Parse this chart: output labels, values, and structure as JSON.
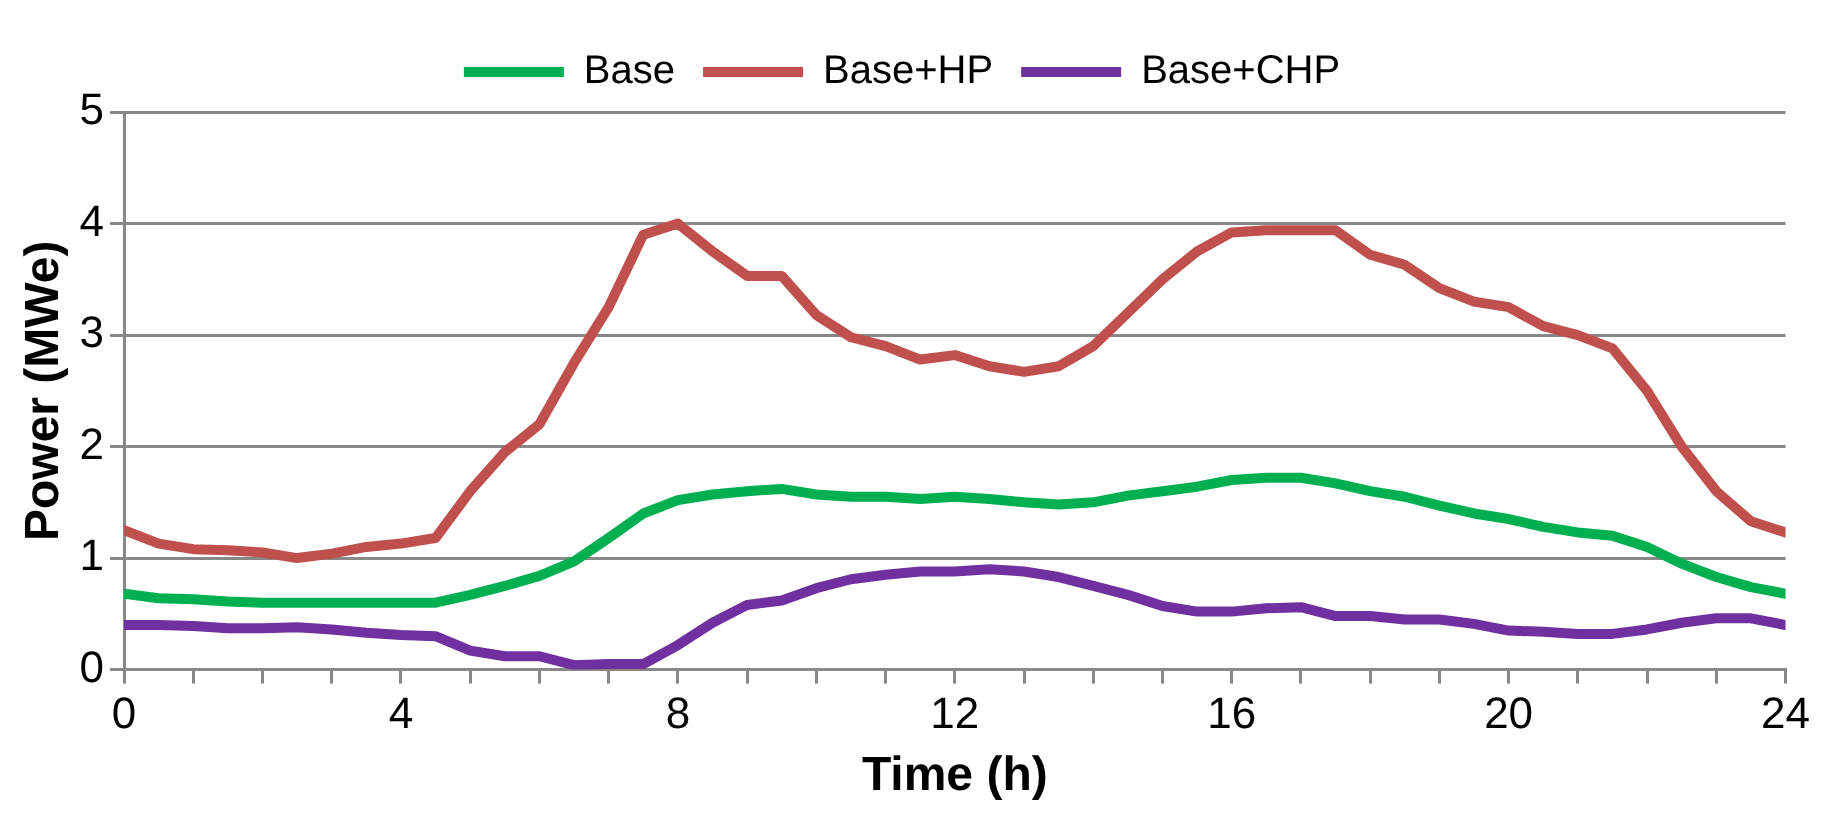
{
  "chart_data": {
    "type": "line",
    "xlabel": "Time (h)",
    "ylabel": "Power (MWe)",
    "x": [
      0,
      0.5,
      1,
      1.5,
      2,
      2.5,
      3,
      3.5,
      4,
      4.5,
      5,
      5.5,
      6,
      6.5,
      7,
      7.5,
      8,
      8.5,
      9,
      9.5,
      10,
      10.5,
      11,
      11.5,
      12,
      12.5,
      13,
      13.5,
      14,
      14.5,
      15,
      15.5,
      16,
      16.5,
      17,
      17.5,
      18,
      18.5,
      19,
      19.5,
      20,
      20.5,
      21,
      21.5,
      22,
      22.5,
      23,
      23.5,
      24
    ],
    "series": [
      {
        "name": "Base",
        "color": "#00b050",
        "values": [
          0.68,
          0.64,
          0.63,
          0.61,
          0.6,
          0.6,
          0.6,
          0.6,
          0.6,
          0.6,
          0.67,
          0.75,
          0.84,
          0.97,
          1.18,
          1.4,
          1.52,
          1.57,
          1.6,
          1.62,
          1.57,
          1.55,
          1.55,
          1.53,
          1.55,
          1.53,
          1.5,
          1.48,
          1.5,
          1.56,
          1.6,
          1.64,
          1.7,
          1.72,
          1.72,
          1.67,
          1.6,
          1.55,
          1.47,
          1.4,
          1.35,
          1.28,
          1.23,
          1.2,
          1.1,
          0.95,
          0.83,
          0.74,
          0.68
        ]
      },
      {
        "name": "Base+HP",
        "color": "#c0504d",
        "values": [
          1.25,
          1.13,
          1.08,
          1.07,
          1.05,
          1.0,
          1.04,
          1.1,
          1.13,
          1.18,
          1.6,
          1.95,
          2.2,
          2.75,
          3.25,
          3.9,
          4.0,
          3.75,
          3.53,
          3.53,
          3.18,
          2.98,
          2.9,
          2.78,
          2.82,
          2.72,
          2.67,
          2.72,
          2.9,
          3.2,
          3.5,
          3.75,
          3.92,
          3.94,
          3.94,
          3.94,
          3.72,
          3.63,
          3.42,
          3.3,
          3.25,
          3.08,
          3.0,
          2.88,
          2.5,
          2.0,
          1.6,
          1.33,
          1.23
        ]
      },
      {
        "name": "Base+CHP",
        "color": "#7030a0",
        "values": [
          0.4,
          0.4,
          0.39,
          0.37,
          0.37,
          0.38,
          0.36,
          0.33,
          0.31,
          0.3,
          0.17,
          0.12,
          0.12,
          0.04,
          0.05,
          0.05,
          0.22,
          0.42,
          0.58,
          0.62,
          0.73,
          0.81,
          0.85,
          0.88,
          0.88,
          0.9,
          0.88,
          0.83,
          0.75,
          0.67,
          0.57,
          0.52,
          0.52,
          0.55,
          0.56,
          0.48,
          0.48,
          0.45,
          0.45,
          0.41,
          0.35,
          0.34,
          0.32,
          0.32,
          0.36,
          0.42,
          0.46,
          0.46,
          0.4
        ]
      }
    ],
    "xlim": [
      0,
      24
    ],
    "xticks": [
      0,
      {
        "value": 1,
        "label": null
      },
      {
        "value": 2,
        "label": null
      },
      {
        "value": 3,
        "label": null
      },
      4,
      {
        "value": 5,
        "label": null
      },
      {
        "value": 6,
        "label": null
      },
      {
        "value": 7,
        "label": null
      },
      8,
      {
        "value": 9,
        "label": null
      },
      {
        "value": 10,
        "label": null
      },
      {
        "value": 11,
        "label": null
      },
      12,
      {
        "value": 13,
        "label": null
      },
      {
        "value": 14,
        "label": null
      },
      {
        "value": 15,
        "label": null
      },
      16,
      {
        "value": 17,
        "label": null
      },
      {
        "value": 18,
        "label": null
      },
      {
        "value": 19,
        "label": null
      },
      20,
      {
        "value": 21,
        "label": null
      },
      {
        "value": 22,
        "label": null
      },
      {
        "value": 23,
        "label": null
      },
      24
    ],
    "ylim": [
      0,
      5
    ],
    "yticks": [
      0,
      1,
      2,
      3,
      4,
      5
    ],
    "grid": "y",
    "legend": "top",
    "marker": "none",
    "line_style": "solid"
  }
}
